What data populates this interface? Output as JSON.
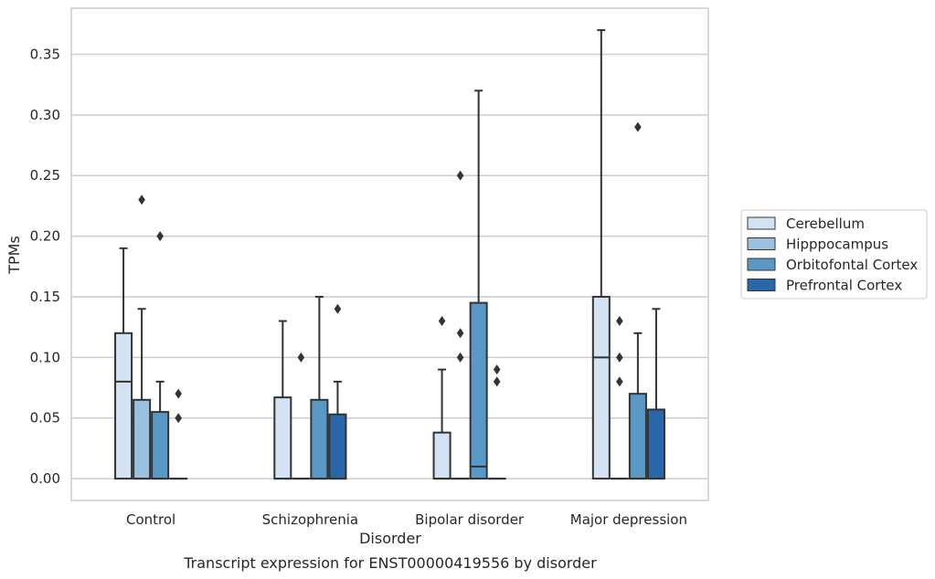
{
  "chart_data": {
    "type": "box",
    "title": "",
    "caption": "Transcript expression for ENST00000419556 by disorder",
    "xlabel": "Disorder",
    "ylabel": "TPMs",
    "ylim": [
      -0.018,
      0.388
    ],
    "yticks": [
      "0.00",
      "0.05",
      "0.10",
      "0.15",
      "0.20",
      "0.25",
      "0.30",
      "0.35"
    ],
    "categories": [
      "Control",
      "Schizophrenia",
      "Bipolar disorder",
      "Major depression"
    ],
    "grid": "horizontal",
    "legend_position": "right",
    "series": [
      {
        "name": "Cerebellum",
        "color": "#d3e3f3",
        "boxes": [
          {
            "q1": 0.0,
            "median": 0.08,
            "q3": 0.12,
            "whisker_low": 0.0,
            "whisker_high": 0.19,
            "outliers": []
          },
          {
            "q1": 0.0,
            "median": 0.0,
            "q3": 0.067,
            "whisker_low": 0.0,
            "whisker_high": 0.13,
            "outliers": []
          },
          {
            "q1": 0.0,
            "median": 0.0,
            "q3": 0.038,
            "whisker_low": 0.0,
            "whisker_high": 0.09,
            "outliers": [
              0.13
            ]
          },
          {
            "q1": 0.0,
            "median": 0.1,
            "q3": 0.15,
            "whisker_low": 0.0,
            "whisker_high": 0.37,
            "outliers": []
          }
        ]
      },
      {
        "name": "Hipppocampus",
        "color": "#9ac1dd",
        "boxes": [
          {
            "q1": 0.0,
            "median": 0.0,
            "q3": 0.065,
            "whisker_low": 0.0,
            "whisker_high": 0.14,
            "outliers": [
              0.23
            ]
          },
          {
            "q1": 0.0,
            "median": 0.0,
            "q3": 0.0,
            "whisker_low": 0.0,
            "whisker_high": 0.0,
            "outliers": [
              0.1
            ]
          },
          {
            "q1": 0.0,
            "median": 0.0,
            "q3": 0.0,
            "whisker_low": 0.0,
            "whisker_high": 0.0,
            "outliers": [
              0.25,
              0.12,
              0.1
            ]
          },
          {
            "q1": 0.0,
            "median": 0.0,
            "q3": 0.0,
            "whisker_low": 0.0,
            "whisker_high": 0.0,
            "outliers": [
              0.13,
              0.1,
              0.08
            ]
          }
        ]
      },
      {
        "name": "Orbitofontal Cortex",
        "color": "#5a98c6",
        "boxes": [
          {
            "q1": 0.0,
            "median": 0.0,
            "q3": 0.055,
            "whisker_low": 0.0,
            "whisker_high": 0.08,
            "outliers": [
              0.2
            ]
          },
          {
            "q1": 0.0,
            "median": 0.0,
            "q3": 0.065,
            "whisker_low": 0.0,
            "whisker_high": 0.15,
            "outliers": []
          },
          {
            "q1": 0.0,
            "median": 0.01,
            "q3": 0.145,
            "whisker_low": 0.0,
            "whisker_high": 0.32,
            "outliers": []
          },
          {
            "q1": 0.0,
            "median": 0.0,
            "q3": 0.07,
            "whisker_low": 0.0,
            "whisker_high": 0.12,
            "outliers": [
              0.29
            ]
          }
        ]
      },
      {
        "name": "Prefrontal Cortex",
        "color": "#2a67a8",
        "boxes": [
          {
            "q1": 0.0,
            "median": 0.0,
            "q3": 0.0,
            "whisker_low": 0.0,
            "whisker_high": 0.0,
            "outliers": [
              0.07,
              0.05
            ]
          },
          {
            "q1": 0.0,
            "median": 0.0,
            "q3": 0.053,
            "whisker_low": 0.0,
            "whisker_high": 0.08,
            "outliers": [
              0.14
            ]
          },
          {
            "q1": 0.0,
            "median": 0.0,
            "q3": 0.0,
            "whisker_low": 0.0,
            "whisker_high": 0.0,
            "outliers": [
              0.09,
              0.08
            ]
          },
          {
            "q1": 0.0,
            "median": 0.0,
            "q3": 0.057,
            "whisker_low": 0.0,
            "whisker_high": 0.14,
            "outliers": []
          }
        ]
      }
    ]
  }
}
